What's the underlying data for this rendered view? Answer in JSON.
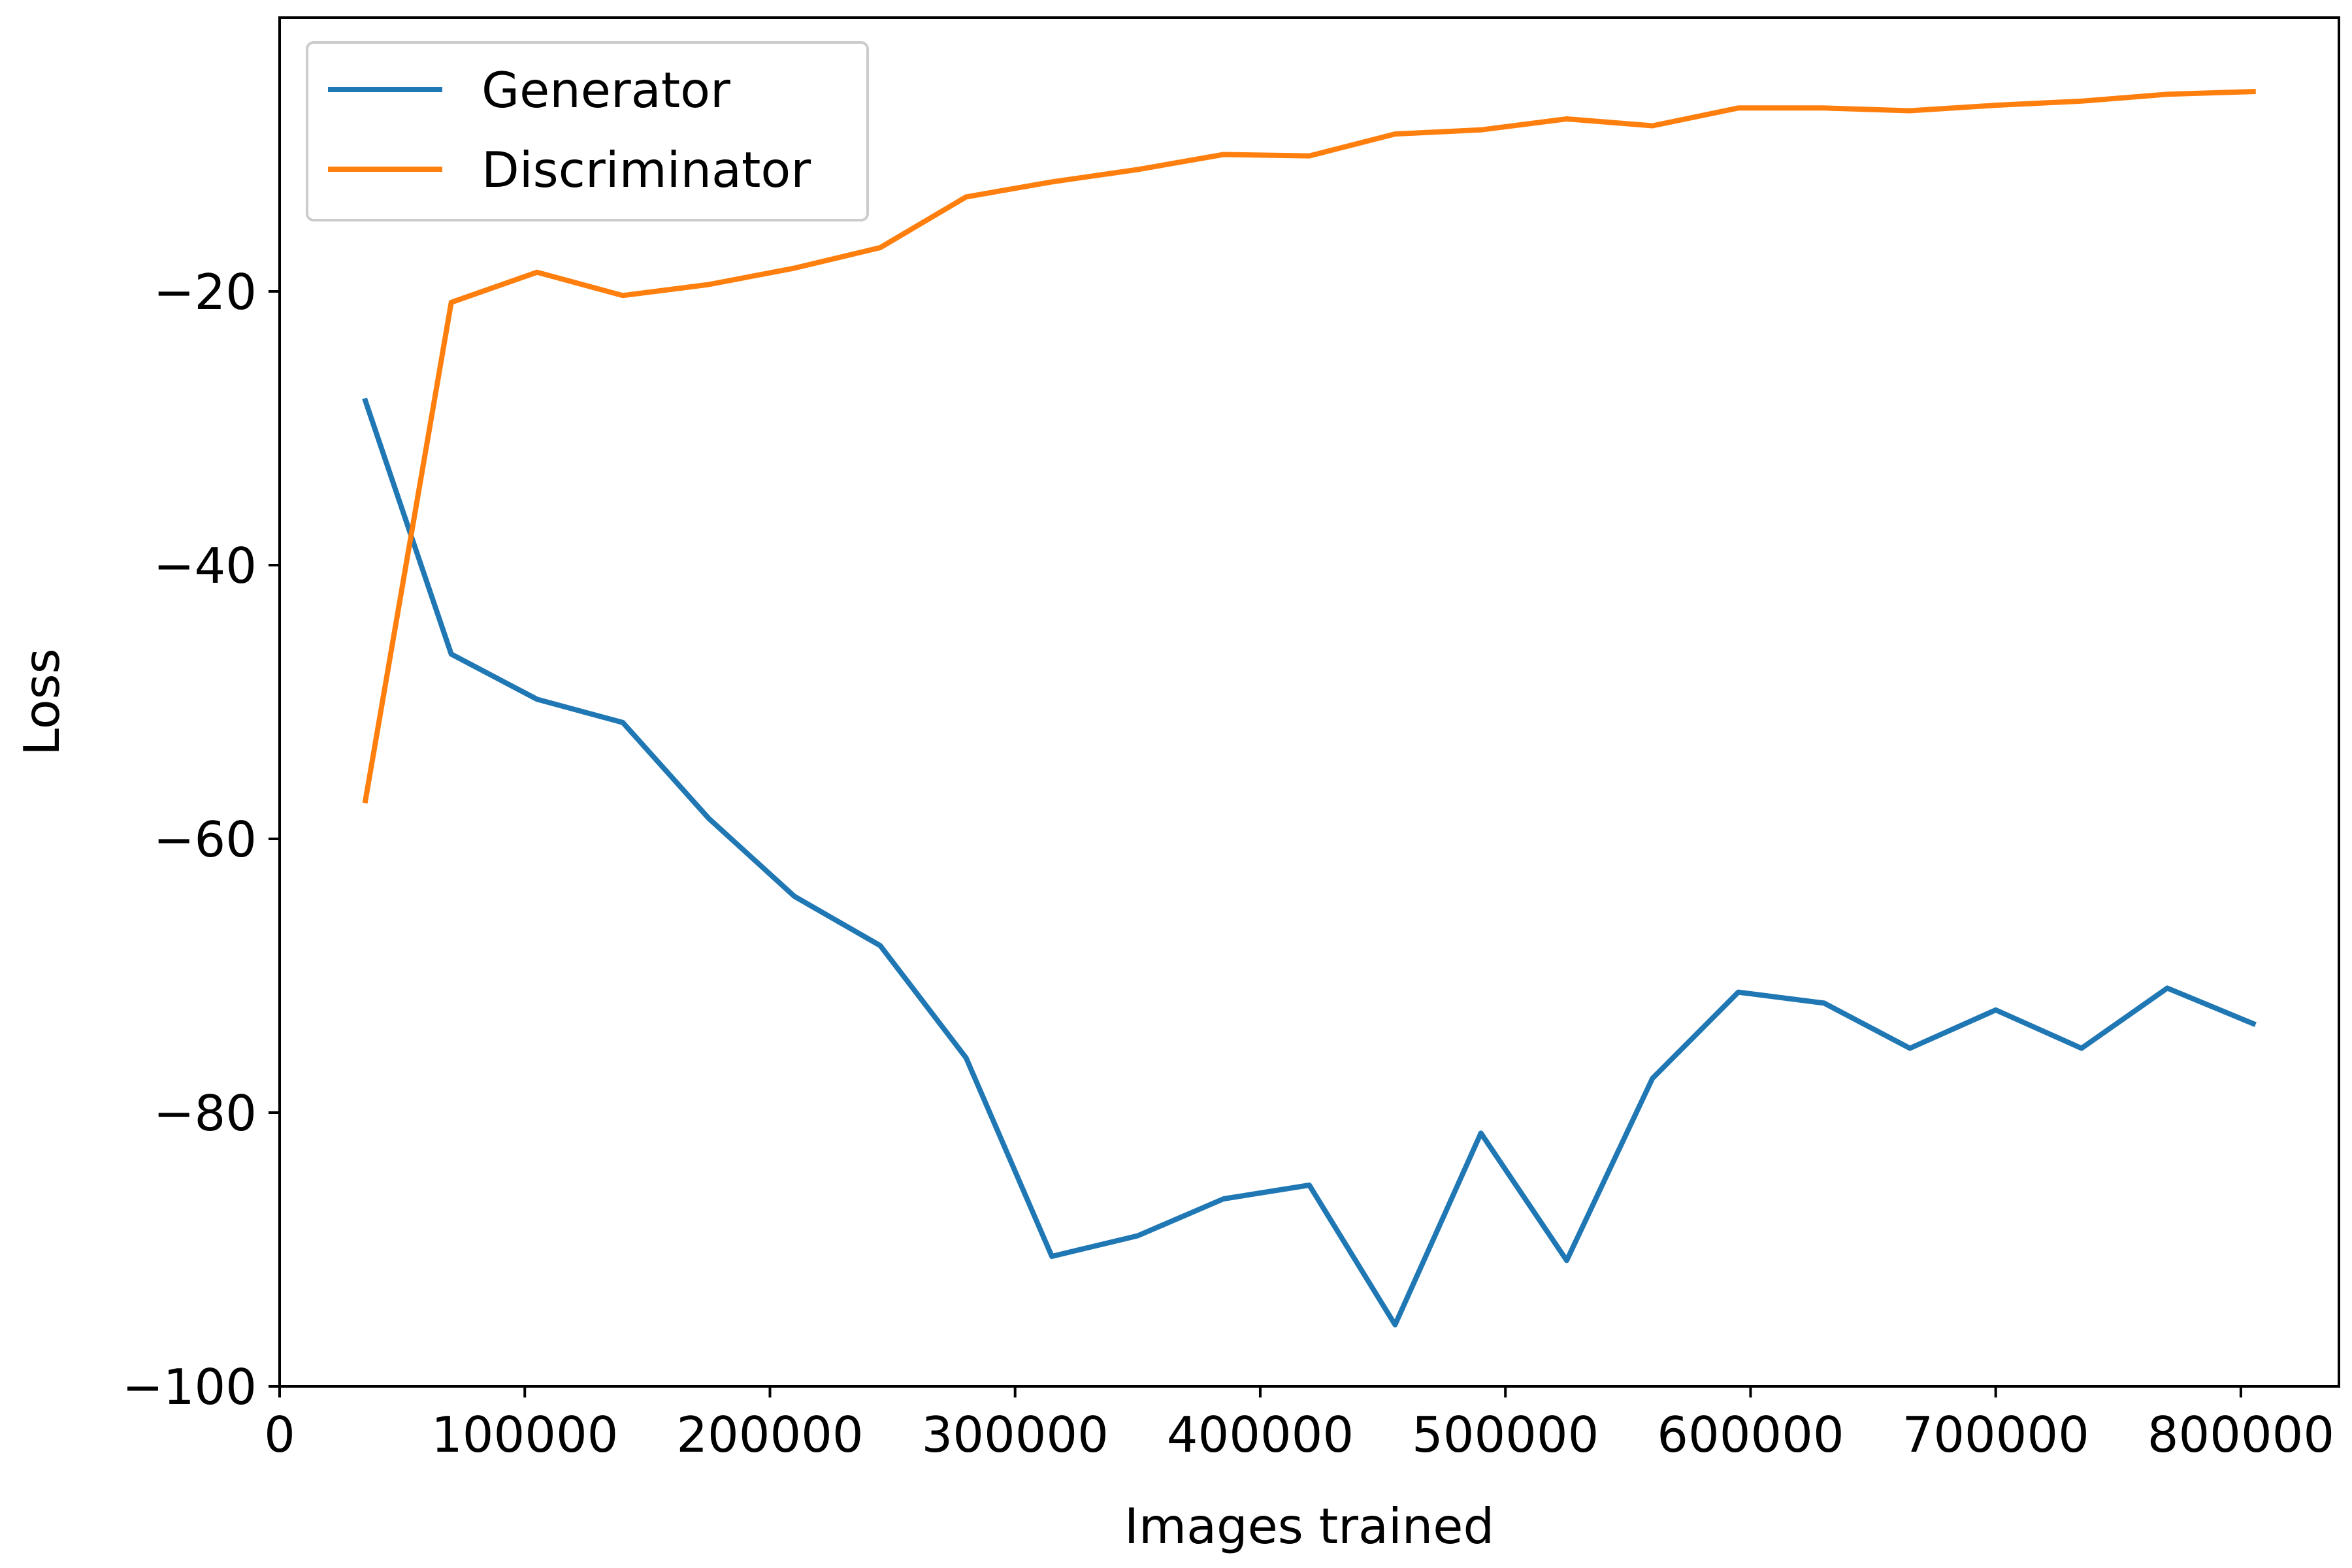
{
  "chart_data": {
    "type": "line",
    "title": "",
    "xlabel": "Images trained",
    "ylabel": "Loss",
    "xlim": [
      0,
      840000
    ],
    "ylim": [
      -100,
      0
    ],
    "x_ticks": [
      0,
      100000,
      200000,
      300000,
      400000,
      500000,
      600000,
      700000,
      800000
    ],
    "x_tick_labels": [
      "0",
      "100000",
      "200000",
      "300000",
      "400000",
      "500000",
      "600000",
      "700000",
      "800000"
    ],
    "y_ticks": [
      -20,
      -40,
      -60,
      -80,
      -100
    ],
    "y_tick_labels": [
      "−20",
      "−40",
      "−60",
      "−80",
      "−100"
    ],
    "grid": false,
    "legend_position": "upper-left",
    "x": [
      35000,
      70000,
      105000,
      140000,
      175000,
      210000,
      245000,
      280000,
      315000,
      350000,
      385000,
      420000,
      455000,
      490000,
      525000,
      560000,
      595000,
      630000,
      665000,
      700000,
      735000,
      770000,
      805000
    ],
    "series": [
      {
        "name": "Generator",
        "color": "#1f77b4",
        "values": [
          -28.0,
          -46.5,
          -49.8,
          -51.5,
          -58.5,
          -64.2,
          -67.8,
          -76.0,
          -90.5,
          -89.0,
          -86.3,
          -85.3,
          -95.5,
          -81.5,
          -90.8,
          -77.5,
          -71.2,
          -72.0,
          -75.3,
          -72.5,
          -75.3,
          -70.9,
          -73.5
        ]
      },
      {
        "name": "Discriminator",
        "color": "#ff7f0e",
        "values": [
          -57.2,
          -20.8,
          -18.6,
          -20.3,
          -19.5,
          -18.3,
          -16.8,
          -13.1,
          -12.0,
          -11.1,
          -10.0,
          -10.1,
          -8.5,
          -8.2,
          -7.4,
          -7.9,
          -6.6,
          -6.6,
          -6.8,
          -6.4,
          -6.1,
          -5.6,
          -5.4
        ]
      }
    ]
  }
}
